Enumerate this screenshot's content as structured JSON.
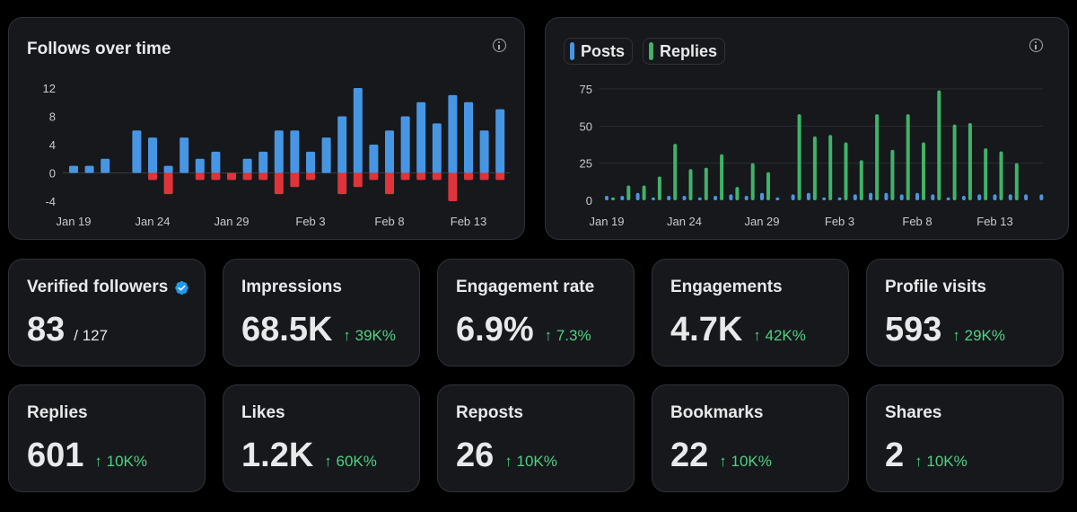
{
  "follows_chart": {
    "title": "Follows over time",
    "info_icon": "info-icon"
  },
  "posts_chart": {
    "legend": {
      "posts": "Posts",
      "replies": "Replies"
    },
    "info_icon": "info-icon"
  },
  "colors": {
    "positive": "#4796e4",
    "negative": "#e0333a",
    "posts": "#4796e4",
    "replies": "#3fb368",
    "change_up": "#4ed282"
  },
  "chart_data": [
    {
      "type": "bar",
      "title": "Follows over time",
      "x_tick_labels": [
        "Jan 19",
        "Jan 24",
        "Jan 29",
        "Feb 3",
        "Feb 8",
        "Feb 13"
      ],
      "x_tick_index": [
        0,
        5,
        10,
        15,
        20,
        25
      ],
      "y_ticks": [
        12,
        8,
        4,
        0,
        -4
      ],
      "ylim": [
        -4,
        12
      ],
      "series": [
        {
          "values": [
            1,
            1,
            2,
            0,
            6,
            5,
            1,
            5,
            2,
            3,
            0,
            2,
            3,
            6,
            6,
            3,
            5,
            8,
            12,
            4,
            6,
            8,
            10,
            7,
            11,
            10,
            6,
            9
          ]
        },
        {
          "values": [
            0,
            0,
            0,
            0,
            0,
            -1,
            -3,
            0,
            -1,
            -1,
            -1,
            -1,
            -1,
            -3,
            -2,
            -1,
            0,
            -3,
            -2,
            -1,
            -3,
            -1,
            -1,
            -1,
            -4,
            -1,
            -1,
            -1
          ]
        }
      ]
    },
    {
      "type": "bar",
      "x_tick_labels": [
        "Jan 19",
        "Jan 24",
        "Jan 29",
        "Feb 3",
        "Feb 8",
        "Feb 13"
      ],
      "x_tick_index": [
        0,
        5,
        10,
        15,
        20,
        25
      ],
      "y_ticks": [
        75,
        50,
        25,
        0
      ],
      "ylim": [
        0,
        75
      ],
      "series": [
        {
          "name": "Posts",
          "values": [
            3,
            3,
            5,
            2,
            3,
            3,
            2,
            3,
            4,
            3,
            5,
            2,
            4,
            5,
            2,
            2,
            4,
            5,
            5,
            4,
            5,
            4,
            2,
            3,
            4,
            4,
            4,
            4,
            4
          ]
        },
        {
          "name": "Replies",
          "values": [
            2,
            10,
            10,
            16,
            38,
            21,
            22,
            31,
            9,
            25,
            19,
            0,
            58,
            43,
            44,
            39,
            27,
            58,
            34,
            58,
            39,
            74,
            51,
            52,
            35,
            33,
            25,
            0,
            0
          ]
        }
      ]
    }
  ],
  "stats": [
    {
      "label": "Verified followers",
      "value": "83",
      "total": "/ 127",
      "verified_icon": "verified-badge-icon"
    },
    {
      "label": "Impressions",
      "value": "68.5K",
      "change": "↑ 39K%"
    },
    {
      "label": "Engagement rate",
      "value": "6.9%",
      "change": "↑ 7.3%"
    },
    {
      "label": "Engagements",
      "value": "4.7K",
      "change": "↑ 42K%"
    },
    {
      "label": "Profile visits",
      "value": "593",
      "change": "↑ 29K%"
    },
    {
      "label": "Replies",
      "value": "601",
      "change": "↑ 10K%"
    },
    {
      "label": "Likes",
      "value": "1.2K",
      "change": "↑ 60K%"
    },
    {
      "label": "Reposts",
      "value": "26",
      "change": "↑ 10K%"
    },
    {
      "label": "Bookmarks",
      "value": "22",
      "change": "↑ 10K%"
    },
    {
      "label": "Shares",
      "value": "2",
      "change": "↑ 10K%"
    }
  ]
}
